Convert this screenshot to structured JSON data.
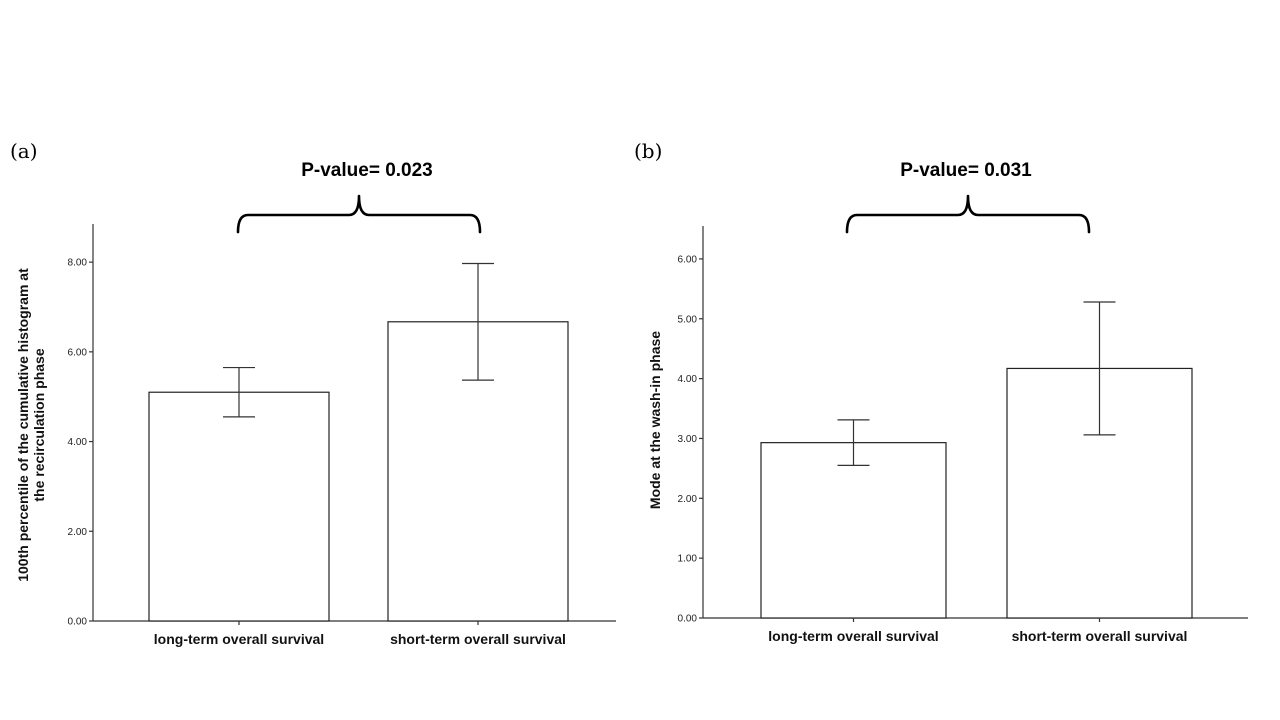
{
  "chart_data": [
    {
      "type": "bar",
      "panel_label": "(a)",
      "annotation": "P-value= 0.023",
      "categories": [
        "long-term overall survival",
        "short-term overall survival"
      ],
      "values": [
        5.1,
        6.67
      ],
      "error_low": [
        4.55,
        5.37
      ],
      "error_high": [
        5.65,
        7.97
      ],
      "ylabel_lines": [
        "100th percentile of the cumulative histogram at",
        "the recirculation phase"
      ],
      "xlabel": "",
      "ylim": [
        0,
        8.85
      ],
      "yticks": [
        "0.00",
        "2.00",
        "4.00",
        "6.00",
        "8.00"
      ],
      "grid": false
    },
    {
      "type": "bar",
      "panel_label": "(b)",
      "annotation": "P-value= 0.031",
      "categories": [
        "long-term overall survival",
        "short-term overall survival"
      ],
      "values": [
        2.93,
        4.17
      ],
      "error_low": [
        2.55,
        3.06
      ],
      "error_high": [
        3.31,
        5.28
      ],
      "ylabel_lines": [
        "Mode at the wash-in phase"
      ],
      "xlabel": "",
      "ylim": [
        0,
        6.55
      ],
      "yticks": [
        "0.00",
        "1.00",
        "2.00",
        "3.00",
        "4.00",
        "5.00",
        "6.00"
      ],
      "grid": false
    }
  ]
}
